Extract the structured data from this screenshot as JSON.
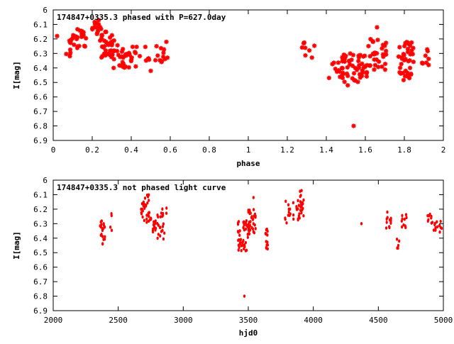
{
  "chart_data": [
    {
      "type": "scatter",
      "title": "174847+0335.3 phased with P=627.0day",
      "xlabel": "phase",
      "ylabel": "I[mag]",
      "xlim": [
        0,
        2
      ],
      "ylim": [
        6.9,
        6.0
      ],
      "x_ticks": [
        0,
        0.2,
        0.4,
        0.6,
        0.8,
        1,
        1.2,
        1.4,
        1.6,
        1.8,
        2
      ],
      "x_tick_labels": [
        "0",
        "0.2",
        "0.4",
        "0.6",
        "0.8",
        "1",
        "1.2",
        "1.4",
        "1.6",
        "1.8",
        "2"
      ],
      "y_ticks": [
        6,
        6.1,
        6.2,
        6.3,
        6.4,
        6.5,
        6.6,
        6.7,
        6.8,
        6.9
      ],
      "y_tick_labels": [
        "6",
        "6.1",
        "6.2",
        "6.3",
        "6.4",
        "6.5",
        "6.6",
        "6.7",
        "6.8",
        "6.9"
      ],
      "grid": false,
      "marker": "asterisk",
      "color": "#ff0000",
      "clusters": [
        {
          "x": [
            0.06,
            0.1
          ],
          "y": [
            6.18,
            6.32
          ],
          "n": 8
        },
        {
          "x": [
            0.09,
            0.17
          ],
          "y": [
            6.13,
            6.27
          ],
          "n": 22
        },
        {
          "x": [
            0.2,
            0.25
          ],
          "y": [
            6.07,
            6.17
          ],
          "n": 14
        },
        {
          "x": [
            0.24,
            0.33
          ],
          "y": [
            6.15,
            6.34
          ],
          "n": 40
        },
        {
          "x": [
            0.33,
            0.43
          ],
          "y": [
            6.25,
            6.4
          ],
          "n": 28
        },
        {
          "x": [
            0.44,
            0.6
          ],
          "y": [
            6.24,
            6.36
          ],
          "n": 18
        },
        {
          "x": [
            1.27,
            1.36
          ],
          "y": [
            6.22,
            6.34
          ],
          "n": 8
        },
        {
          "x": [
            1.41,
            1.5
          ],
          "y": [
            6.35,
            6.47
          ],
          "n": 12
        },
        {
          "x": [
            1.48,
            1.61
          ],
          "y": [
            6.3,
            6.5
          ],
          "n": 50
        },
        {
          "x": [
            1.61,
            1.71
          ],
          "y": [
            6.2,
            6.42
          ],
          "n": 30
        },
        {
          "x": [
            1.77,
            1.85
          ],
          "y": [
            6.22,
            6.49
          ],
          "n": 40
        },
        {
          "x": [
            1.88,
            1.93
          ],
          "y": [
            6.27,
            6.38
          ],
          "n": 8
        }
      ],
      "points": [
        [
          0.02,
          6.18
        ],
        [
          0.5,
          6.42
        ],
        [
          1.54,
          6.8
        ],
        [
          1.66,
          6.12
        ],
        [
          0.31,
          6.4
        ],
        [
          1.51,
          6.52
        ],
        [
          0.58,
          6.22
        ]
      ]
    },
    {
      "type": "scatter",
      "title": "174847+0335.3 not phased light curve",
      "xlabel": "hjd0",
      "ylabel": "I[mag]",
      "xlim": [
        2000,
        5000
      ],
      "ylim": [
        6.9,
        6.0
      ],
      "x_ticks": [
        2000,
        2500,
        3000,
        3500,
        4000,
        4500,
        5000
      ],
      "x_tick_labels": [
        "2000",
        "2500",
        "3000",
        "3500",
        "4000",
        "4500",
        "5000"
      ],
      "y_ticks": [
        6,
        6.1,
        6.2,
        6.3,
        6.4,
        6.5,
        6.6,
        6.7,
        6.8,
        6.9
      ],
      "y_tick_labels": [
        "6",
        "6.1",
        "6.2",
        "6.3",
        "6.4",
        "6.5",
        "6.6",
        "6.7",
        "6.8",
        "6.9"
      ],
      "grid": false,
      "marker": "dot",
      "color": "#ff0000",
      "clusters": [
        {
          "x": [
            2360,
            2400
          ],
          "y": [
            6.26,
            6.44
          ],
          "n": 18
        },
        {
          "x": [
            2420,
            2450
          ],
          "y": [
            6.23,
            6.35
          ],
          "n": 4
        },
        {
          "x": [
            2670,
            2740
          ],
          "y": [
            6.09,
            6.3
          ],
          "n": 30
        },
        {
          "x": [
            2740,
            2790
          ],
          "y": [
            6.26,
            6.36
          ],
          "n": 18
        },
        {
          "x": [
            2800,
            2880
          ],
          "y": [
            6.19,
            6.42
          ],
          "n": 24
        },
        {
          "x": [
            3420,
            3510
          ],
          "y": [
            6.28,
            6.51
          ],
          "n": 45
        },
        {
          "x": [
            3500,
            3560
          ],
          "y": [
            6.2,
            6.37
          ],
          "n": 30
        },
        {
          "x": [
            3620,
            3650
          ],
          "y": [
            6.33,
            6.48
          ],
          "n": 14
        },
        {
          "x": [
            3780,
            3850
          ],
          "y": [
            6.14,
            6.3
          ],
          "n": 14
        },
        {
          "x": [
            3870,
            3930
          ],
          "y": [
            6.06,
            6.28
          ],
          "n": 30
        },
        {
          "x": [
            4560,
            4600
          ],
          "y": [
            6.22,
            6.35
          ],
          "n": 12
        },
        {
          "x": [
            4640,
            4670
          ],
          "y": [
            6.4,
            6.48
          ],
          "n": 6
        },
        {
          "x": [
            4680,
            4730
          ],
          "y": [
            6.23,
            6.33
          ],
          "n": 10
        },
        {
          "x": [
            4870,
            4910
          ],
          "y": [
            6.23,
            6.3
          ],
          "n": 8
        },
        {
          "x": [
            4900,
            4990
          ],
          "y": [
            6.28,
            6.37
          ],
          "n": 14
        }
      ],
      "points": [
        [
          3470,
          6.8
        ],
        [
          3540,
          6.12
        ],
        [
          4370,
          6.3
        ],
        [
          2380,
          6.44
        ]
      ]
    }
  ]
}
